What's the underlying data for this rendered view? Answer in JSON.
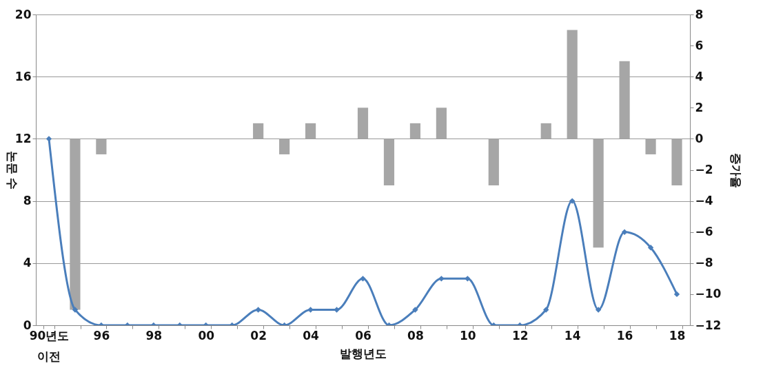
{
  "chart_data": {
    "type": "bar",
    "xlabel": "발행년도",
    "ylabel": "논문 수",
    "y2label": "증가율",
    "categories": [
      "90년도 이전",
      null,
      "96",
      null,
      "98",
      null,
      "00",
      null,
      "02",
      null,
      "04",
      null,
      "06",
      null,
      "08",
      null,
      "10",
      null,
      "12",
      null,
      "14",
      null,
      "16",
      null,
      "18"
    ],
    "series": [
      {
        "type": "bar",
        "axis": "y2",
        "color": "#a6a6a6",
        "values": [
          null,
          -11,
          -1,
          0,
          0,
          0,
          0,
          0,
          1,
          -1,
          1,
          0,
          2,
          -3,
          1,
          2,
          0,
          -3,
          0,
          1,
          7,
          -7,
          5,
          -1,
          -3
        ]
      },
      {
        "type": "line",
        "axis": "y",
        "color": "#4a7ebb",
        "marker": "diamond",
        "values": [
          12,
          1,
          0,
          0,
          0,
          0,
          0,
          0,
          1,
          0,
          1,
          1,
          3,
          0,
          1,
          3,
          3,
          0,
          0,
          1,
          8,
          1,
          6,
          5,
          2
        ]
      }
    ],
    "ylim": [
      0,
      20
    ],
    "yticks": [
      0,
      4,
      8,
      12,
      16,
      20
    ],
    "y2lim": [
      -12,
      8
    ],
    "y2ticks": [
      -12,
      -10,
      -8,
      -6,
      -4,
      -2,
      0,
      2,
      4,
      6,
      8
    ],
    "grid": "y"
  }
}
